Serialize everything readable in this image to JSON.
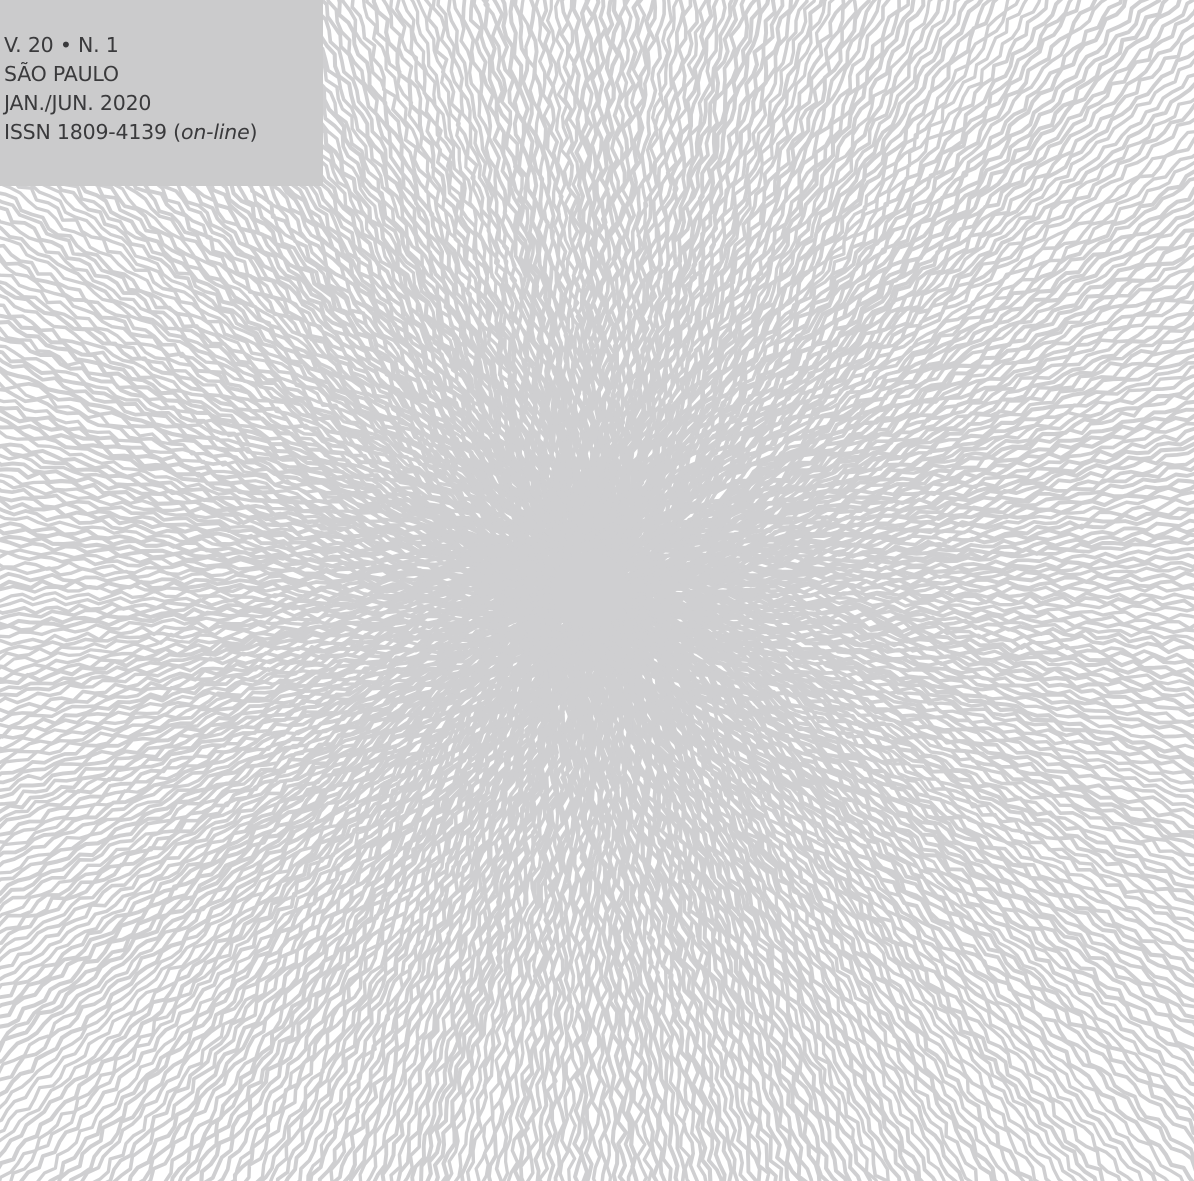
{
  "cover_info": {
    "volume_line": "V. 20 • N. 1",
    "city": "SÃO PAULO",
    "period": "JAN./JUN. 2020",
    "issn_prefix": "ISSN 1809-4139 (",
    "issn_online": "on-line",
    "issn_suffix": ")"
  },
  "colors": {
    "info_box": "#cbcbcc",
    "text": "#3a3a3c",
    "lines": "#cfcfd1",
    "background": "#ffffff"
  },
  "artwork": {
    "description_icon": "radial-wavy-lines-burst-icon"
  }
}
